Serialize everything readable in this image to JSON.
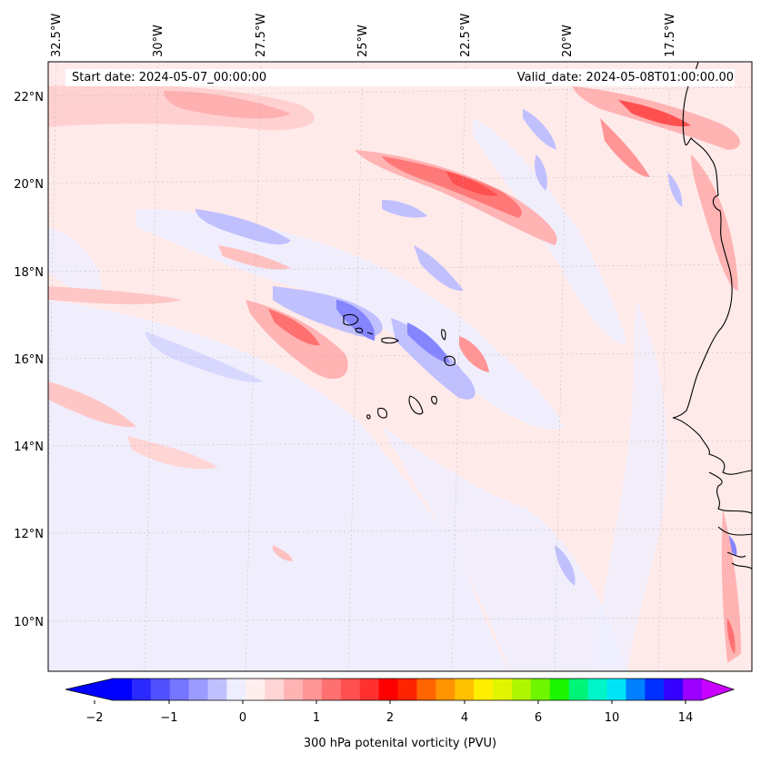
{
  "header": {
    "start_date": "Start date: 2024-05-07_00:00:00",
    "valid_date": "Valid_date: 2024-05-08T01:00:00.00"
  },
  "longitude_labels": [
    "32.5°W",
    "30°W",
    "27.5°W",
    "25°W",
    "22.5°W",
    "20°W",
    "17.5°W"
  ],
  "latitude_labels": [
    "22°N",
    "20°N",
    "18°N",
    "16°N",
    "14°N",
    "12°N",
    "10°N"
  ],
  "colorbar": {
    "label": "300 hPa potenital vorticity (PVU)",
    "tick_labels": [
      "−2",
      "−1",
      "0",
      "1",
      "2",
      "4",
      "6",
      "10",
      "14"
    ],
    "colors": [
      "#0000ff",
      "#2a2aff",
      "#5050ff",
      "#7575ff",
      "#9b9bff",
      "#c0c0ff",
      "#eeeeff",
      "#ffeeee",
      "#ffd5d5",
      "#ffb3b3",
      "#ff9595",
      "#ff7070",
      "#ff5050",
      "#ff3030",
      "#ff0000",
      "#ff2400",
      "#ff6400",
      "#ff9400",
      "#ffc000",
      "#ffee00",
      "#e2f500",
      "#b0f500",
      "#6ef500",
      "#1cf500",
      "#00f578",
      "#00f5c8",
      "#00e5f5",
      "#0080ff",
      "#0030ff",
      "#3400ff",
      "#9b00ff"
    ],
    "extend_low": "#0000ff",
    "extend_high": "#c800ff"
  },
  "map": {
    "background_color": "#ffeaea",
    "coastline_color": "#000000"
  }
}
